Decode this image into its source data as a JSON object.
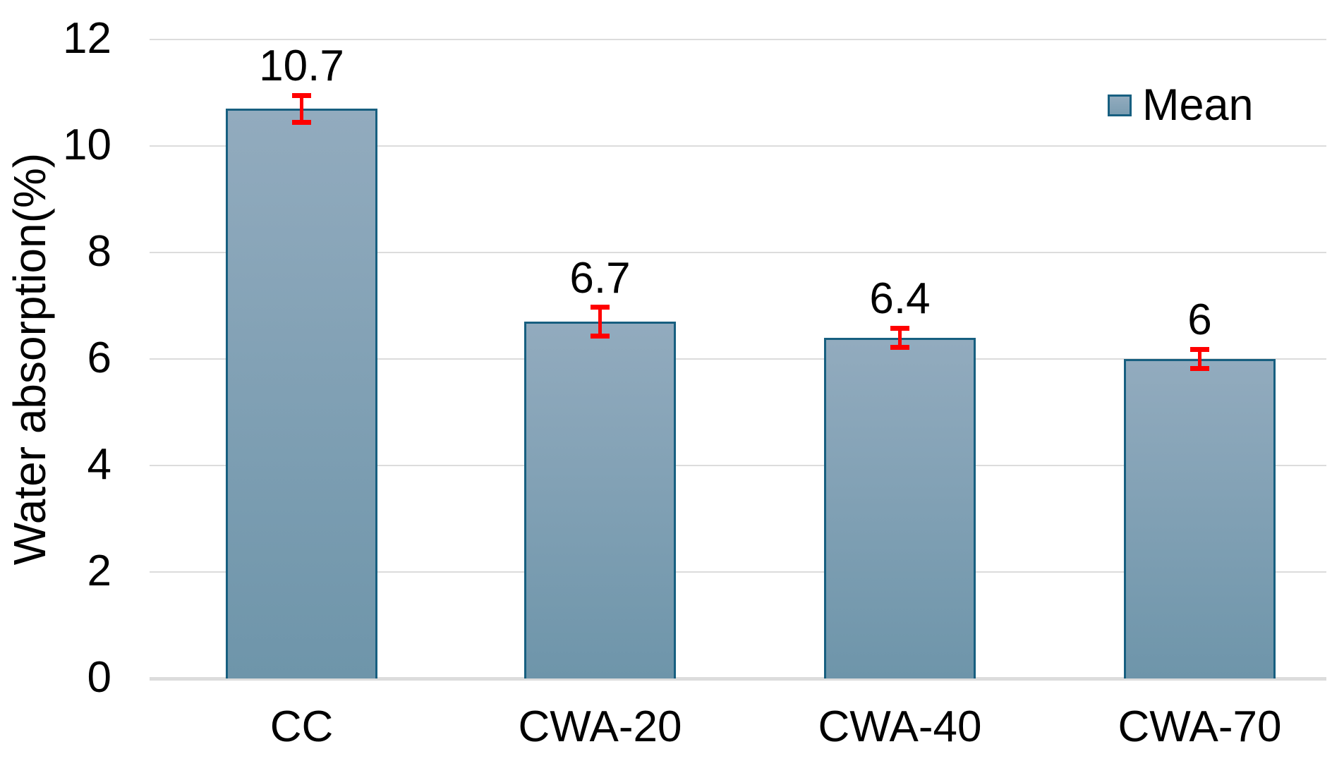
{
  "chart_data": {
    "type": "bar",
    "title": "",
    "categories": [
      "CC",
      "CWA-20",
      "CWA-40",
      "CWA-70"
    ],
    "values": [
      10.7,
      6.7,
      6.4,
      6
    ],
    "data_labels": [
      "10.7",
      "6.7",
      "6.4",
      "6"
    ],
    "errors": [
      0.25,
      0.27,
      0.18,
      0.18
    ],
    "xlabel": "",
    "ylabel": "Water absorption(%)",
    "ylim": [
      0,
      12
    ],
    "ytick_step": 2,
    "yticks": [
      {
        "label": "12",
        "value": 12
      },
      {
        "label": "10",
        "value": 10
      },
      {
        "label": "8",
        "value": 8
      },
      {
        "label": "6",
        "value": 6
      },
      {
        "label": "4",
        "value": 4
      },
      {
        "label": "2",
        "value": 2
      },
      {
        "label": "0",
        "value": 0
      }
    ],
    "grid": "horizontal",
    "legend": {
      "label": "Mean",
      "position": "top-right"
    },
    "colors": {
      "bar_fill_top": "#92ABBE",
      "bar_fill_bottom": "#6E95AA",
      "bar_border": "#175F80",
      "error_bar": "#FF0000",
      "gridline": "#DCDCDC",
      "axis_line": "#DCDCDC",
      "text": "#000000"
    }
  }
}
